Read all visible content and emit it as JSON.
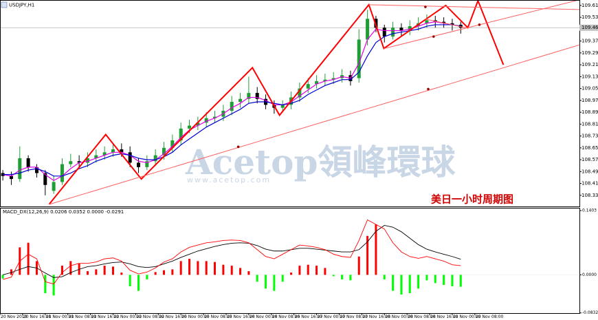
{
  "chart_data": {
    "type": "candlestick",
    "title": "USDJPY,H1",
    "watermark": "Acetop領峰環球",
    "watermark_url": "www.acetop.com",
    "annotation": "美日一小时周期图",
    "xlim": [
      0,
      205
    ],
    "xticks": [
      {
        "value": 0,
        "label": "20 Nov 2019"
      },
      {
        "value": 8,
        "label": "20 Nov 16:00"
      },
      {
        "value": 16,
        "label": "21 Nov 00:00"
      },
      {
        "value": 24,
        "label": "21 Nov 08:00"
      },
      {
        "value": 32,
        "label": "21 Nov 16:00"
      },
      {
        "value": 40,
        "label": "22 Nov 00:00"
      },
      {
        "value": 48,
        "label": "22 Nov 08:00"
      },
      {
        "value": 56,
        "label": "22 Nov 16:00"
      },
      {
        "value": 64,
        "label": "25 Nov 00:00"
      },
      {
        "value": 72,
        "label": "25 Nov 08:00"
      },
      {
        "value": 80,
        "label": "25 Nov 16:00"
      },
      {
        "value": 88,
        "label": "26 Nov 00:00"
      },
      {
        "value": 96,
        "label": "26 Nov 08:00"
      },
      {
        "value": 104,
        "label": "26 Nov 16:00"
      },
      {
        "value": 112,
        "label": "27 Nov 00:00"
      },
      {
        "value": 120,
        "label": "27 Nov 08:00"
      },
      {
        "value": 128,
        "label": "27 Nov 16:00"
      },
      {
        "value": 136,
        "label": "28 Nov 00:00"
      },
      {
        "value": 144,
        "label": "28 Nov 08:00"
      },
      {
        "value": 152,
        "label": "28 Nov 16:00"
      },
      {
        "value": 160,
        "label": "29 Nov 00:00"
      },
      {
        "value": 168,
        "label": "29 Nov 08:00"
      }
    ],
    "ylim": [
      108.255,
      109.642
    ],
    "yticks": [
      {
        "value": 109.61,
        "label": "109.610"
      },
      {
        "value": 109.53,
        "label": "109.530"
      },
      {
        "value": 109.37,
        "label": "109.370"
      },
      {
        "value": 109.29,
        "label": "109.290"
      },
      {
        "value": 109.21,
        "label": "109.210"
      },
      {
        "value": 109.13,
        "label": "109.130"
      },
      {
        "value": 109.05,
        "label": "109.050"
      },
      {
        "value": 108.97,
        "label": "108.970"
      },
      {
        "value": 108.89,
        "label": "108.890"
      },
      {
        "value": 108.81,
        "label": "108.810"
      },
      {
        "value": 108.73,
        "label": "108.730"
      },
      {
        "value": 108.65,
        "label": "108.650"
      },
      {
        "value": 108.57,
        "label": "108.570"
      },
      {
        "value": 108.49,
        "label": "108.490"
      },
      {
        "value": 108.41,
        "label": "108.410"
      },
      {
        "value": 108.33,
        "label": "108.330"
      }
    ],
    "current_price": {
      "value": 109.46,
      "label": "109.460"
    },
    "up_color": "#1f9e35",
    "down_color": "#000000",
    "x": [
      1,
      4,
      7,
      10,
      13,
      16,
      19,
      22,
      25,
      28,
      31,
      34,
      37,
      40,
      43,
      46,
      49,
      52,
      55,
      58,
      61,
      64,
      67,
      70,
      73,
      76,
      79,
      82,
      85,
      88,
      91,
      94,
      97,
      100,
      103,
      106,
      109,
      112,
      115,
      118,
      121,
      124,
      127,
      130,
      133,
      136,
      139,
      142,
      145,
      148,
      151,
      154,
      157,
      160,
      163
    ],
    "open": [
      108.48,
      108.46,
      108.44,
      108.58,
      108.52,
      108.48,
      108.36,
      108.42,
      108.54,
      108.56,
      108.55,
      108.58,
      108.6,
      108.62,
      108.64,
      108.62,
      108.55,
      108.52,
      108.56,
      108.6,
      108.65,
      108.7,
      108.78,
      108.8,
      108.82,
      108.85,
      108.86,
      108.9,
      108.96,
      108.98,
      109.02,
      108.98,
      108.94,
      108.92,
      108.94,
      108.99,
      109.05,
      109.08,
      109.1,
      109.11,
      109.12,
      109.14,
      109.12,
      109.38,
      109.52,
      109.46,
      109.4,
      109.46,
      109.44,
      109.47,
      109.49,
      109.51,
      109.5,
      109.49,
      109.48
    ],
    "high": [
      108.5,
      108.49,
      108.66,
      108.6,
      108.54,
      108.5,
      108.46,
      108.58,
      108.61,
      108.6,
      108.62,
      108.64,
      108.66,
      108.68,
      108.68,
      108.66,
      108.58,
      108.6,
      108.64,
      108.69,
      108.74,
      108.82,
      108.84,
      108.86,
      108.89,
      108.9,
      108.94,
      109.0,
      109.02,
      109.13,
      109.06,
      109.01,
      108.97,
      108.97,
      109.03,
      109.09,
      109.12,
      109.14,
      109.15,
      109.16,
      109.18,
      109.17,
      109.45,
      109.58,
      109.54,
      109.48,
      109.5,
      109.49,
      109.51,
      109.53,
      109.55,
      109.54,
      109.53,
      109.52,
      109.5
    ],
    "low": [
      108.43,
      108.4,
      108.42,
      108.49,
      108.45,
      108.33,
      108.34,
      108.4,
      108.52,
      108.52,
      108.52,
      108.55,
      108.57,
      108.59,
      108.59,
      108.52,
      108.48,
      108.5,
      108.53,
      108.57,
      108.62,
      108.67,
      108.75,
      108.77,
      108.79,
      108.82,
      108.83,
      108.87,
      108.92,
      108.95,
      108.95,
      108.91,
      108.88,
      108.89,
      108.91,
      108.96,
      109.02,
      109.05,
      109.07,
      109.08,
      109.09,
      109.07,
      109.09,
      109.34,
      109.43,
      109.36,
      109.38,
      109.4,
      109.41,
      109.44,
      109.46,
      109.46,
      109.46,
      109.44,
      109.42
    ],
    "close": [
      108.46,
      108.44,
      108.58,
      108.52,
      108.48,
      108.4,
      108.42,
      108.54,
      108.56,
      108.55,
      108.58,
      108.6,
      108.62,
      108.64,
      108.62,
      108.55,
      108.52,
      108.56,
      108.6,
      108.65,
      108.7,
      108.78,
      108.8,
      108.82,
      108.85,
      108.86,
      108.9,
      108.96,
      108.98,
      109.02,
      108.98,
      108.94,
      108.92,
      108.94,
      108.99,
      109.05,
      109.08,
      109.1,
      109.11,
      109.12,
      109.14,
      109.1,
      109.38,
      109.52,
      109.46,
      109.4,
      109.46,
      109.44,
      109.47,
      109.49,
      109.51,
      109.5,
      109.49,
      109.48,
      109.46
    ],
    "series": [
      {
        "color": "#e000e0",
        "values": [
          108.47,
          108.46,
          108.5,
          108.52,
          108.52,
          108.47,
          108.43,
          108.46,
          108.51,
          108.55,
          108.56,
          108.58,
          108.6,
          108.62,
          108.62,
          108.6,
          108.56,
          108.55,
          108.57,
          108.61,
          108.66,
          108.72,
          108.77,
          108.8,
          108.83,
          108.85,
          108.88,
          108.92,
          108.95,
          108.99,
          108.99,
          108.97,
          108.94,
          108.94,
          108.96,
          109.0,
          109.04,
          109.08,
          109.1,
          109.11,
          109.13,
          109.12,
          109.22,
          109.38,
          109.45,
          109.44,
          109.44,
          109.44,
          109.45,
          109.47,
          109.49,
          109.5,
          109.49,
          109.48,
          109.47
        ]
      },
      {
        "color": "#0000d0",
        "values": [
          108.47,
          108.47,
          108.48,
          108.5,
          108.51,
          108.49,
          108.46,
          108.46,
          108.48,
          108.51,
          108.53,
          108.56,
          108.58,
          108.6,
          108.61,
          108.6,
          108.58,
          108.57,
          108.57,
          108.59,
          108.62,
          108.67,
          108.71,
          108.75,
          108.79,
          108.82,
          108.85,
          108.88,
          108.91,
          108.95,
          108.96,
          108.96,
          108.95,
          108.94,
          108.95,
          108.97,
          109.01,
          109.04,
          109.07,
          109.09,
          109.11,
          109.11,
          109.16,
          109.27,
          109.36,
          109.4,
          109.42,
          109.43,
          109.44,
          109.45,
          109.47,
          109.48,
          109.48,
          109.48,
          109.47
        ]
      }
    ],
    "drawings": [
      {
        "color": "#ff0000",
        "width": 2,
        "points": [
          [
            17.4,
            108.27
          ],
          [
            37.4,
            108.74
          ],
          [
            50,
            108.44
          ],
          [
            89.3,
            109.19
          ],
          [
            98.9,
            108.87
          ],
          [
            130.5,
            109.615
          ],
          [
            135.8,
            109.32
          ],
          [
            157.7,
            109.61
          ],
          [
            165.5,
            109.46
          ],
          [
            169.1,
            109.642
          ],
          [
            178.1,
            109.21
          ]
        ]
      },
      {
        "color": "#ff6060",
        "width": 1,
        "points": [
          [
            17.4,
            108.269
          ],
          [
            205,
            109.344
          ]
        ]
      },
      {
        "color": "#ff6060",
        "width": 1,
        "points": [
          [
            135.8,
            109.319
          ],
          [
            205,
            109.648
          ]
        ]
      },
      {
        "color": "#ff6060",
        "width": 1,
        "points": [
          [
            130.5,
            109.615
          ],
          [
            205,
            109.582
          ]
        ]
      },
      {
        "color": "#ff6060",
        "width": 1,
        "points": [
          [
            150.5,
            109.518
          ],
          [
            165.5,
            109.457
          ]
        ]
      }
    ],
    "markers": {
      "color": "#a00000",
      "points": [
        [
          84.3,
          108.657
        ],
        [
          151.5,
          109.046
        ],
        [
          150.5,
          109.6
        ],
        [
          169.6,
          109.48
        ],
        [
          153.4,
          109.4
        ]
      ]
    },
    "macd": {
      "label": "MACD_DX(12,26,9) 0.0206 0.0352 0.0000 -0.0291",
      "ylim": [
        -0.0836,
        0.1448
      ],
      "yticks": [
        {
          "value": 0.1403,
          "label": "0.1403"
        },
        {
          "value": 0,
          "label": "0.0000"
        },
        {
          "value": -0.0832,
          "label": "-0.0832"
        }
      ],
      "up_color": "#ff0000",
      "down_color": "#00ff00",
      "histogram": [
        -0.008,
        0.012,
        0.06,
        0.07,
        0.03,
        -0.04,
        -0.045,
        0.02,
        0.03,
        0.025,
        0.008,
        0.012,
        0.02,
        0.018,
        0.005,
        -0.025,
        -0.035,
        -0.01,
        0.006,
        0.01,
        0.012,
        0.03,
        0.035,
        0.03,
        0.03,
        0.028,
        0.022,
        0.02,
        0.015,
        0.008,
        -0.015,
        -0.03,
        -0.035,
        -0.015,
        0.005,
        0.02,
        0.022,
        0.02,
        0.015,
        -0.003,
        -0.01,
        -0.012,
        0.04,
        0.085,
        0.11,
        -0.01,
        -0.035,
        -0.043,
        -0.04,
        -0.03,
        -0.012,
        -0.018,
        -0.022,
        -0.025,
        -0.026
      ],
      "series": [
        {
          "color": "#000000",
          "values": [
            0.0,
            0.005,
            0.012,
            0.018,
            0.015,
            0.004,
            -0.006,
            -0.004,
            0.005,
            0.012,
            0.018,
            0.02,
            0.024,
            0.027,
            0.028,
            0.024,
            0.018,
            0.016,
            0.018,
            0.024,
            0.03,
            0.038,
            0.045,
            0.052,
            0.057,
            0.062,
            0.066,
            0.069,
            0.07,
            0.069,
            0.064,
            0.056,
            0.052,
            0.052,
            0.055,
            0.058,
            0.058,
            0.056,
            0.054,
            0.052,
            0.05,
            0.05,
            0.055,
            0.072,
            0.095,
            0.108,
            0.104,
            0.094,
            0.08,
            0.066,
            0.056,
            0.05,
            0.045,
            0.04,
            0.034
          ]
        },
        {
          "color": "#ff0000",
          "values": [
            -0.01,
            -0.005,
            0.03,
            0.045,
            0.035,
            -0.015,
            -0.02,
            0.005,
            0.02,
            0.025,
            0.025,
            0.028,
            0.035,
            0.037,
            0.03,
            0.01,
            0.002,
            0.006,
            0.015,
            0.028,
            0.035,
            0.05,
            0.06,
            0.065,
            0.07,
            0.072,
            0.075,
            0.076,
            0.075,
            0.07,
            0.055,
            0.04,
            0.035,
            0.045,
            0.055,
            0.065,
            0.063,
            0.06,
            0.055,
            0.045,
            0.04,
            0.038,
            0.075,
            0.12,
            0.11,
            0.1,
            0.07,
            0.05,
            0.04,
            0.036,
            0.04,
            0.035,
            0.03,
            0.022,
            0.02
          ]
        }
      ]
    }
  }
}
